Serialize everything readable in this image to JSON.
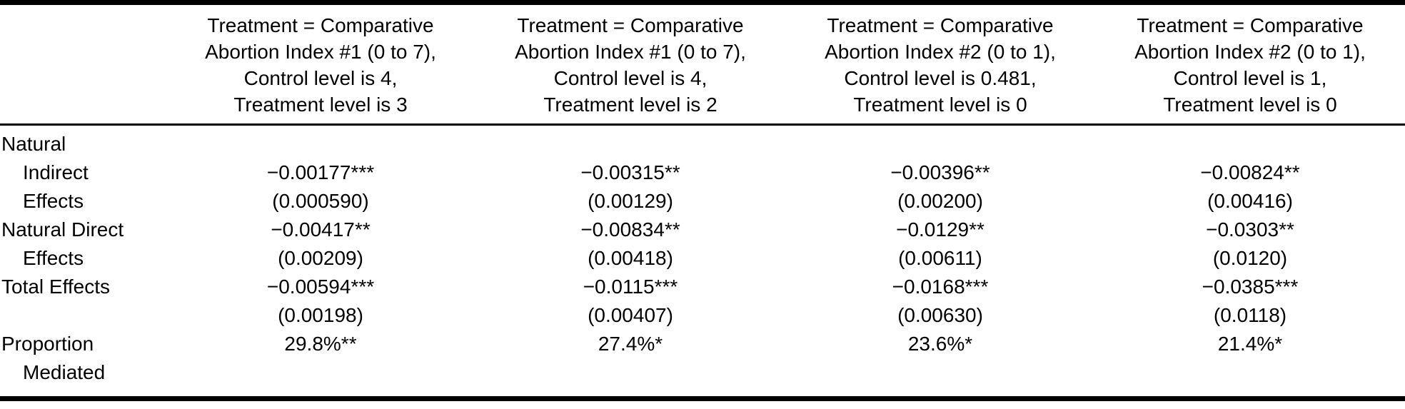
{
  "table": {
    "columns": [
      {
        "header_lines": [
          "Treatment = Comparative",
          "Abortion Index #1 (0 to 7),",
          "Control level is 4,",
          "Treatment level is 3"
        ]
      },
      {
        "header_lines": [
          "Treatment = Comparative",
          "Abortion Index #1 (0 to 7),",
          "Control level is 4,",
          "Treatment level is 2"
        ]
      },
      {
        "header_lines": [
          "Treatment = Comparative",
          "Abortion Index #2 (0 to 1),",
          "Control level is 0.481,",
          "Treatment level is 0"
        ]
      },
      {
        "header_lines": [
          "Treatment = Comparative",
          "Abortion Index #2 (0 to 1),",
          "Control level is 1,",
          "Treatment level is 0"
        ]
      }
    ],
    "rows": [
      {
        "label": "Natural",
        "indent": false,
        "values": [
          "",
          "",
          "",
          ""
        ]
      },
      {
        "label": "Indirect",
        "indent": true,
        "values": [
          "−0.00177***",
          "−0.00315**",
          "−0.00396**",
          "−0.00824**"
        ]
      },
      {
        "label": "Effects",
        "indent": true,
        "values": [
          "(0.000590)",
          "(0.00129)",
          "(0.00200)",
          "(0.00416)"
        ]
      },
      {
        "label": "Natural Direct",
        "indent": false,
        "values": [
          "−0.00417**",
          "−0.00834**",
          "−0.0129**",
          "−0.0303**"
        ]
      },
      {
        "label": "Effects",
        "indent": true,
        "values": [
          "(0.00209)",
          "(0.00418)",
          "(0.00611)",
          "(0.0120)"
        ]
      },
      {
        "label": "Total Effects",
        "indent": false,
        "values": [
          "−0.00594***",
          "−0.0115***",
          "−0.0168***",
          "−0.0385***"
        ]
      },
      {
        "label": "",
        "indent": false,
        "values": [
          "(0.00198)",
          "(0.00407)",
          "(0.00630)",
          "(0.0118)"
        ]
      },
      {
        "label": "Proportion",
        "indent": false,
        "values": [
          "29.8%**",
          "27.4%*",
          "23.6%*",
          "21.4%*"
        ]
      },
      {
        "label": "Mediated",
        "indent": true,
        "values": [
          "",
          "",
          "",
          ""
        ]
      }
    ],
    "text_color": "#000000",
    "rule_color": "#000000"
  }
}
